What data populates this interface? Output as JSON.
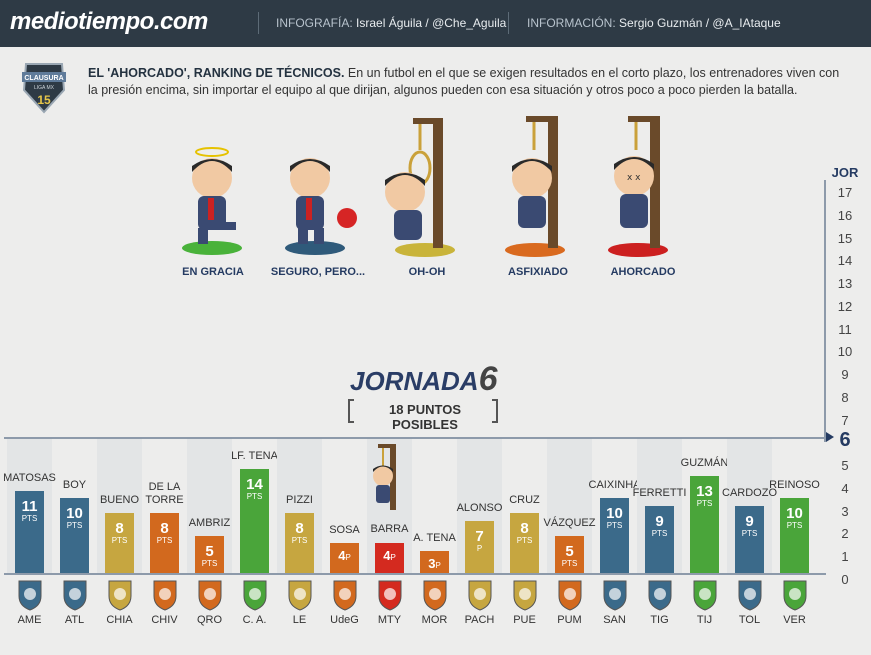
{
  "header": {
    "logo": "mediotiempo.com",
    "infografia_label": "INFOGRAFÍA:",
    "infografia_name": "Israel Águila /",
    "infografia_handle": "@Che_Aguila",
    "informacion_label": "INFORMACIÓN:",
    "informacion_name": "Sergio Guzmán /",
    "informacion_handle": "@A_IAtaque"
  },
  "badge": {
    "line1": "CLAUSURA",
    "line2": "LIGA MX",
    "line3": "15"
  },
  "intro": {
    "title": "EL 'AHORCADO', RANKING DE TÉCNICOS.",
    "body": " En un futbol en el que se exigen resultados en el corto plazo, los entrenadores viven con la presión encima, sin importar el equipo al que dirijan, algunos pueden con esa situación y otros poco a poco pierden la batalla."
  },
  "legend": [
    {
      "label": "EN GRACIA",
      "disc": "#49b23a"
    },
    {
      "label": "SEGURO, PERO...",
      "disc": "#2f5a7a"
    },
    {
      "label": "OH-OH",
      "disc": "#c9b43a"
    },
    {
      "label": "ASFIXIADO",
      "disc": "#d96a1f"
    },
    {
      "label": "AHORCADO",
      "disc": "#cc2020"
    }
  ],
  "scale": {
    "title": "JOR",
    "numbers": [
      "17",
      "16",
      "15",
      "14",
      "13",
      "12",
      "11",
      "10",
      "9",
      "8",
      "7",
      "6",
      "5",
      "4",
      "3",
      "2",
      "1",
      "0"
    ],
    "active": "6"
  },
  "jornada": {
    "label": "JORNADA",
    "number": "6",
    "puntos": "18 PUNTOS POSIBLES"
  },
  "colors": {
    "blue": "#3b6a8a",
    "gold": "#c6a640",
    "orange": "#d2691e",
    "green": "#4aa53a",
    "red": "#d42a1f"
  },
  "chart_data": {
    "type": "bar",
    "ylim": [
      0,
      18
    ],
    "unit": "PTS",
    "categories": [
      "AME",
      "ATL",
      "CHIA",
      "CHIV",
      "QRO",
      "C. A.",
      "LE",
      "UdeG",
      "MTY",
      "MOR",
      "PACH",
      "PUE",
      "PUM",
      "SAN",
      "TIG",
      "TIJ",
      "TOL",
      "VER"
    ],
    "coaches": [
      "MATOSAS",
      "BOY",
      "BUENO",
      "DE LA TORRE",
      "AMBRIZ",
      "LF. TENA",
      "PIZZI",
      "SOSA",
      "BARRA",
      "A. TENA",
      "ALONSO",
      "CRUZ",
      "VÁZQUEZ",
      "CAIXINHA",
      "FERRETTI",
      "GUZMÁN",
      "CARDOZO",
      "REINOSO"
    ],
    "values": [
      11,
      10,
      8,
      8,
      5,
      14,
      8,
      4,
      4,
      3,
      7,
      8,
      5,
      10,
      9,
      13,
      9,
      10
    ],
    "colors": [
      "blue",
      "blue",
      "gold",
      "orange",
      "orange",
      "green",
      "gold",
      "orange",
      "red",
      "orange",
      "gold",
      "gold",
      "orange",
      "blue",
      "blue",
      "green",
      "blue",
      "green"
    ],
    "unit_labels": [
      "PTS",
      "PTS",
      "PTS",
      "PTS",
      "PTS",
      "PTS",
      "PTS",
      "P",
      "P",
      "P",
      "P",
      "PTS",
      "PTS",
      "PTS",
      "PTS",
      "PTS",
      "PTS",
      "PTS"
    ]
  }
}
